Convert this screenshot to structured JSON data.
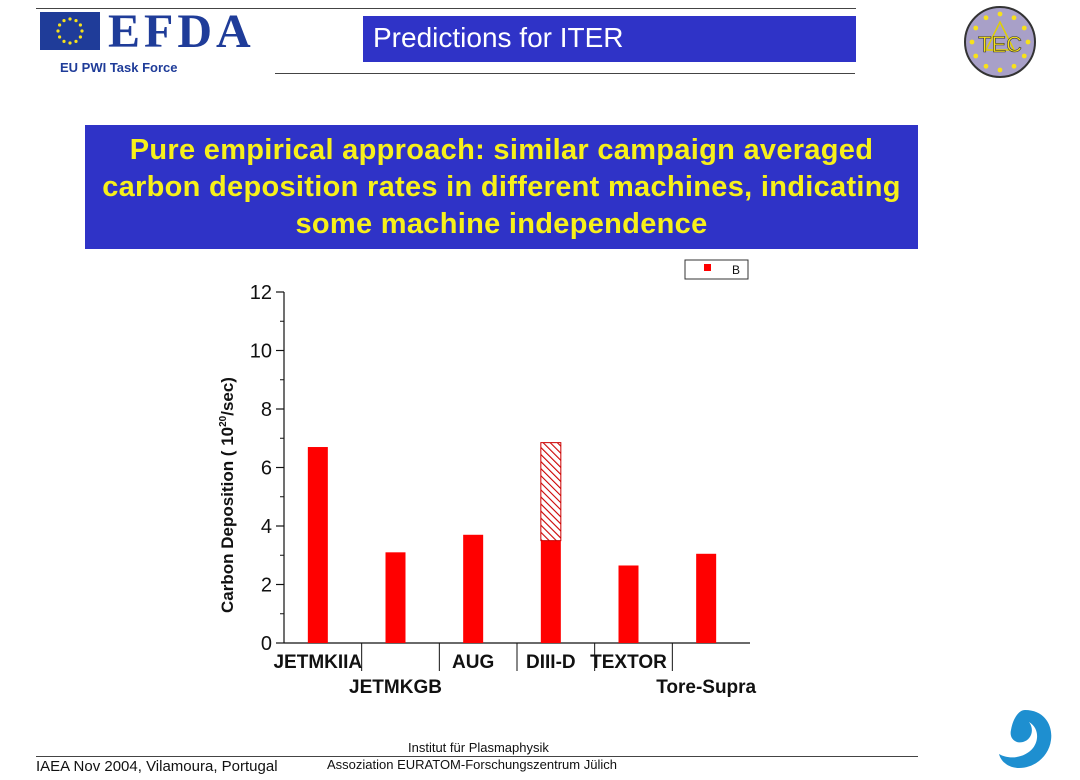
{
  "header": {
    "logo_text": "EFDA",
    "task_force": "EU PWI Task Force",
    "title": "Predictions for ITER",
    "right_logo_text": "TEC"
  },
  "headline": "Pure empirical approach: similar campaign averaged carbon deposition rates in different machines, indicating some machine independence",
  "chart_data": {
    "type": "bar",
    "categories": [
      "JETMKIIA",
      "JETMKGB",
      "AUG",
      "DIII-D",
      "TEXTOR",
      "Tore-Supra"
    ],
    "series": [
      {
        "name": "B",
        "values": [
          6.7,
          3.1,
          3.7,
          3.5,
          2.65,
          3.05
        ]
      },
      {
        "name": "",
        "values": [
          0,
          0,
          0,
          3.35,
          0,
          0
        ]
      }
    ],
    "ylabel": "Carbon Deposition ( 10",
    "ylabel_sup": "20",
    "ylabel_tail": "/sec)",
    "ylim": [
      0,
      12
    ],
    "yticks": [
      0,
      2,
      4,
      6,
      8,
      10,
      12
    ],
    "legend": "top-right",
    "colors": {
      "bar": "#ff0000",
      "hatch": "#cc0000"
    }
  },
  "footer": {
    "left": "IAEA Nov 2004, Vilamoura, Portugal",
    "institute_line1": "Institut für Plasmaphysik",
    "institute_line2": "Assoziation EURATOM-Forschungszentrum Jülich"
  }
}
